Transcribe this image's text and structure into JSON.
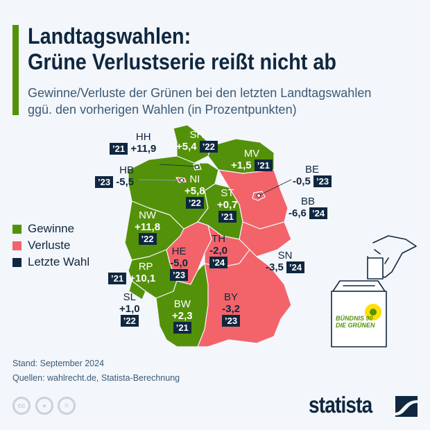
{
  "header": {
    "title_line1": "Landtagswahlen:",
    "title_line2": "Grüne Verlustserie reißt nicht ab",
    "subtitle_line1": "Gewinne/Verluste der Grünen bei den letzten Landtagswahlen",
    "subtitle_line2": "ggü. den vorherigen Wahlen (in Prozentpunkten)"
  },
  "legend": {
    "gain": "Gewinne",
    "loss": "Verluste",
    "last": "Letzte Wahl"
  },
  "colors": {
    "gain": "#54910a",
    "loss": "#f2646a",
    "year_badge": "#0f2740",
    "accent_bar": "#54910a"
  },
  "states": {
    "SH": {
      "code": "SH",
      "value": "+5,4",
      "year": "’22"
    },
    "HH": {
      "code": "HH",
      "value": "+11,9",
      "year": "’21"
    },
    "HB": {
      "code": "HB",
      "value": "-5,5",
      "year": "’23"
    },
    "MV": {
      "code": "MV",
      "value": "+1,5",
      "year": "’21"
    },
    "NI": {
      "code": "NI",
      "value": "+5,8",
      "year": "’22"
    },
    "BE": {
      "code": "BE",
      "value": "-0,5",
      "year": "’23"
    },
    "ST": {
      "code": "ST",
      "value": "+0,7",
      "year": "’21"
    },
    "BB": {
      "code": "BB",
      "value": "-6,6",
      "year": "’24"
    },
    "NW": {
      "code": "NW",
      "value": "+11,8",
      "year": "’22"
    },
    "HE": {
      "code": "HE",
      "value": "-5,0",
      "year": "’23"
    },
    "TH": {
      "code": "TH",
      "value": "-2,0",
      "year": "’24"
    },
    "SN": {
      "code": "SN",
      "value": "-3,5",
      "year": "’24"
    },
    "RP": {
      "code": "RP",
      "value": "+10,1",
      "year": "’21"
    },
    "SL": {
      "code": "SL",
      "value": "+1,0",
      "year": "’22"
    },
    "BW": {
      "code": "BW",
      "value": "+2,3",
      "year": "’21"
    },
    "BY": {
      "code": "BY",
      "value": "-3,2",
      "year": "’23"
    }
  },
  "ballot_logo": {
    "line1": "BÜNDNIS 90",
    "line2": "DIE GRÜNEN"
  },
  "footer": {
    "stand": "Stand: September 2024",
    "sources": "Quellen: wahlrecht.de, Statista-Berechnung",
    "brand": "statista"
  }
}
